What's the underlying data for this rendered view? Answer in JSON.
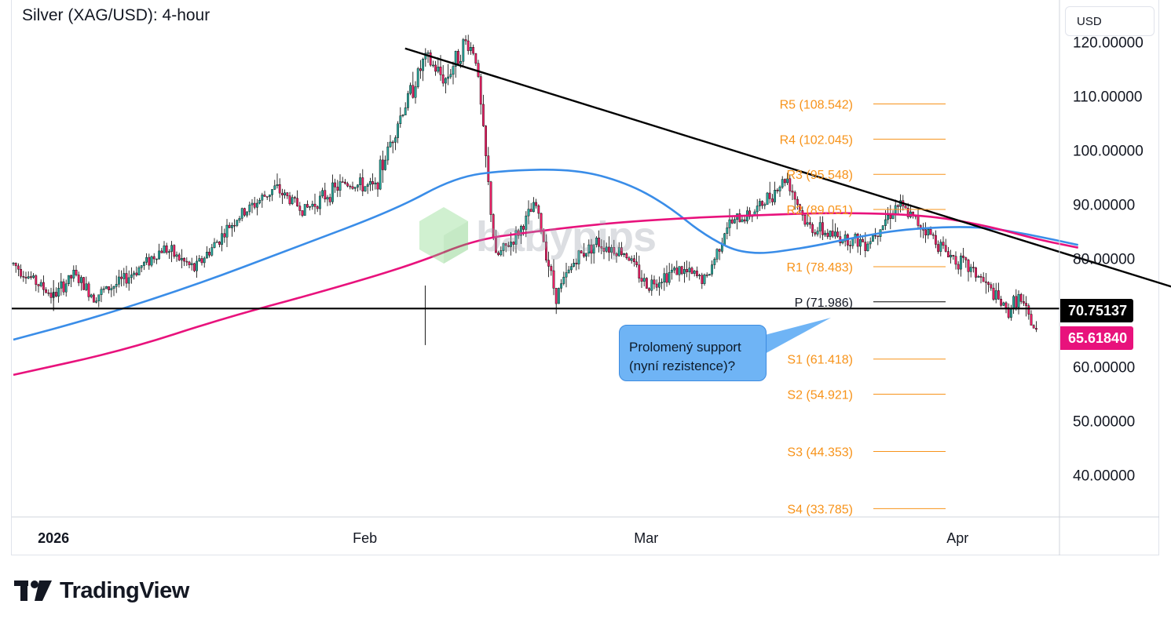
{
  "header": {
    "title": "Silver (XAG/USD): 4-hour"
  },
  "currency_button": {
    "label": "USD"
  },
  "watermark": {
    "text": "babypips"
  },
  "footer": {
    "brand": "TradingView"
  },
  "callout": {
    "line1": "Prolomený support",
    "line2": "(nyní rezistence)?"
  },
  "badges": {
    "horizontal_level": "70.75137",
    "last_price": "65.61840"
  },
  "colors": {
    "up": "#26a69a",
    "down": "#e91e63",
    "ma_fast": "#3a8de8",
    "ma_slow": "#e8127c",
    "pivot": "#f7931a",
    "level": "#000000"
  },
  "chart_data": {
    "type": "line",
    "title": "Silver (XAG/USD): 4-hour",
    "x_tick_labels": [
      "2026",
      "Feb",
      "Mar",
      "Apr"
    ],
    "y_tick_labels": [
      "120.00000",
      "110.00000",
      "100.00000",
      "90.00000",
      "80.00000",
      "60.00000",
      "50.00000",
      "40.00000"
    ],
    "ylim": [
      31,
      125
    ],
    "grid": false,
    "price_path": [
      {
        "date": "2025-12-28",
        "price": 79
      },
      {
        "date": "2026-01-01",
        "price": 73
      },
      {
        "date": "2026-01-03",
        "price": 77
      },
      {
        "date": "2026-01-05",
        "price": 73
      },
      {
        "date": "2026-01-08",
        "price": 76
      },
      {
        "date": "2026-01-12",
        "price": 82
      },
      {
        "date": "2026-01-15",
        "price": 78
      },
      {
        "date": "2026-01-19",
        "price": 87
      },
      {
        "date": "2026-01-23",
        "price": 93
      },
      {
        "date": "2026-01-26",
        "price": 89
      },
      {
        "date": "2026-01-30",
        "price": 94
      },
      {
        "date": "2026-02-02",
        "price": 93
      },
      {
        "date": "2026-02-04",
        "price": 104
      },
      {
        "date": "2026-02-07",
        "price": 117
      },
      {
        "date": "2026-02-09",
        "price": 113
      },
      {
        "date": "2026-02-11",
        "price": 120
      },
      {
        "date": "2026-02-12",
        "price": 118
      },
      {
        "date": "2026-02-14",
        "price": 80
      },
      {
        "date": "2026-02-16",
        "price": 84
      },
      {
        "date": "2026-02-18",
        "price": 90
      },
      {
        "date": "2026-02-20",
        "price": 73
      },
      {
        "date": "2026-02-22",
        "price": 80
      },
      {
        "date": "2026-02-24",
        "price": 83
      },
      {
        "date": "2026-02-27",
        "price": 81
      },
      {
        "date": "2026-03-01",
        "price": 75
      },
      {
        "date": "2026-03-04",
        "price": 78
      },
      {
        "date": "2026-03-07",
        "price": 76
      },
      {
        "date": "2026-03-09",
        "price": 86
      },
      {
        "date": "2026-03-12",
        "price": 89
      },
      {
        "date": "2026-03-15",
        "price": 95
      },
      {
        "date": "2026-03-17",
        "price": 86
      },
      {
        "date": "2026-03-20",
        "price": 84
      },
      {
        "date": "2026-03-23",
        "price": 83
      },
      {
        "date": "2026-03-26",
        "price": 90
      },
      {
        "date": "2026-03-29",
        "price": 85
      },
      {
        "date": "2026-03-31",
        "price": 81
      },
      {
        "date": "2026-04-03",
        "price": 77
      },
      {
        "date": "2026-04-06",
        "price": 70
      },
      {
        "date": "2026-04-07",
        "price": 73
      },
      {
        "date": "2026-04-09",
        "price": 65.6184
      }
    ],
    "series": [
      {
        "name": "",
        "color": "#3a8de8",
        "points": [
          {
            "date": "2025-12-28",
            "value": 65
          },
          {
            "date": "2026-01-05",
            "value": 69
          },
          {
            "date": "2026-01-15",
            "value": 75
          },
          {
            "date": "2026-01-25",
            "value": 82
          },
          {
            "date": "2026-02-04",
            "value": 89
          },
          {
            "date": "2026-02-10",
            "value": 95
          },
          {
            "date": "2026-02-15",
            "value": 96.3
          },
          {
            "date": "2026-02-22",
            "value": 96.5
          },
          {
            "date": "2026-02-27",
            "value": 94
          },
          {
            "date": "2026-03-03",
            "value": 90
          },
          {
            "date": "2026-03-07",
            "value": 84
          },
          {
            "date": "2026-03-11",
            "value": 80.5
          },
          {
            "date": "2026-03-17",
            "value": 82
          },
          {
            "date": "2026-03-22",
            "value": 84
          },
          {
            "date": "2026-03-27",
            "value": 85.5
          },
          {
            "date": "2026-04-03",
            "value": 86
          },
          {
            "date": "2026-04-08",
            "value": 84.5
          },
          {
            "date": "2026-04-13",
            "value": 82.5
          }
        ]
      },
      {
        "name": "",
        "color": "#e8127c",
        "points": [
          {
            "date": "2025-12-28",
            "value": 58.5
          },
          {
            "date": "2026-01-08",
            "value": 63
          },
          {
            "date": "2026-01-18",
            "value": 69
          },
          {
            "date": "2026-01-28",
            "value": 74
          },
          {
            "date": "2026-02-06",
            "value": 79
          },
          {
            "date": "2026-02-12",
            "value": 83.5
          },
          {
            "date": "2026-02-18",
            "value": 85
          },
          {
            "date": "2026-02-25",
            "value": 86.5
          },
          {
            "date": "2026-03-05",
            "value": 87.5
          },
          {
            "date": "2026-03-12",
            "value": 88
          },
          {
            "date": "2026-03-20",
            "value": 88.5
          },
          {
            "date": "2026-03-29",
            "value": 88
          },
          {
            "date": "2026-04-04",
            "value": 86
          },
          {
            "date": "2026-04-09",
            "value": 83.5
          },
          {
            "date": "2026-04-13",
            "value": 82
          }
        ]
      }
    ],
    "trendline": {
      "start": {
        "date": "2026-02-05",
        "value": 118.8
      },
      "end": {
        "date": "2026-04-28",
        "value": 71.5
      }
    },
    "horizontal_level": 70.75137,
    "last_price": 65.6184,
    "pivot_levels": [
      {
        "label": "R5 (108.542)",
        "value": 108.542
      },
      {
        "label": "R4 (102.045)",
        "value": 102.045
      },
      {
        "label": "R3 (95.548)",
        "value": 95.548
      },
      {
        "label": "R2 (89.051)",
        "value": 89.051
      },
      {
        "label": "R1 (78.483)",
        "value": 78.483
      },
      {
        "label": "P (71.986)",
        "value": 71.986
      },
      {
        "label": "S1 (61.418)",
        "value": 61.418
      },
      {
        "label": "S2 (54.921)",
        "value": 54.921
      },
      {
        "label": "S3 (44.353)",
        "value": 44.353
      },
      {
        "label": "S4 (33.785)",
        "value": 33.785
      }
    ]
  }
}
